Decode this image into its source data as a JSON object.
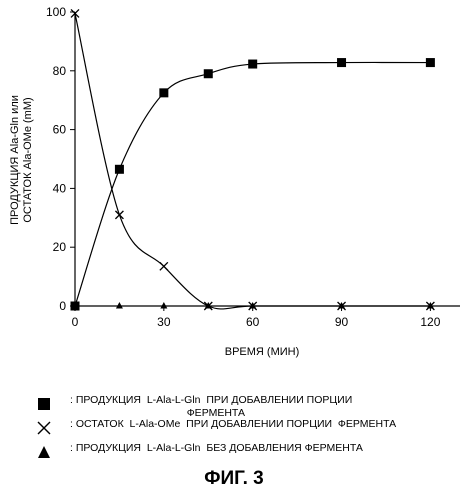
{
  "chart_data": {
    "type": "line",
    "title": "",
    "xlabel": "ВРЕМЯ (МИН)",
    "ylabel_line1": "ПРОДУКЦИЯ  Ala-Gln  или",
    "ylabel_line2": "ОСТАТОК  Ala-OMe (mM)",
    "xlim": [
      0,
      130
    ],
    "ylim": [
      0,
      100
    ],
    "xticks": [
      0,
      30,
      60,
      90,
      120
    ],
    "yticks": [
      0,
      20,
      40,
      60,
      80,
      100
    ],
    "series": [
      {
        "marker": "square",
        "x": [
          0,
          15,
          30,
          45,
          60,
          90,
          120
        ],
        "y": [
          0,
          46.5,
          72.5,
          79,
          82.3,
          82.8,
          82.8
        ]
      },
      {
        "marker": "cross",
        "x": [
          0,
          15,
          30,
          45,
          60,
          90,
          120
        ],
        "y": [
          99.5,
          31,
          13.5,
          0,
          0,
          0,
          0
        ]
      },
      {
        "marker": "triangle",
        "x": [
          15,
          30,
          45,
          60,
          90,
          120
        ],
        "y": [
          0,
          0,
          0,
          0,
          0,
          0
        ]
      }
    ]
  },
  "legend": [
    {
      "icon": "square",
      "text": ": ПРОДУКЦИЯ  L-Ala-L-Gln  ПРИ ДОБАВЛЕНИИ ПОРЦИИ\n                                        ФЕРМЕНТА"
    },
    {
      "icon": "cross",
      "text": ": ОСТАТОК  L-Ala-OMe  ПРИ ДОБАВЛЕНИИ ПОРЦИИ  ФЕРМЕНТА"
    },
    {
      "icon": "triangle",
      "text": ": ПРОДУКЦИЯ  L-Ala-L-Gln  БЕЗ ДОБАВЛЕНИЯ ФЕРМЕНТА"
    }
  ],
  "figure_caption": "ФИГ. 3"
}
